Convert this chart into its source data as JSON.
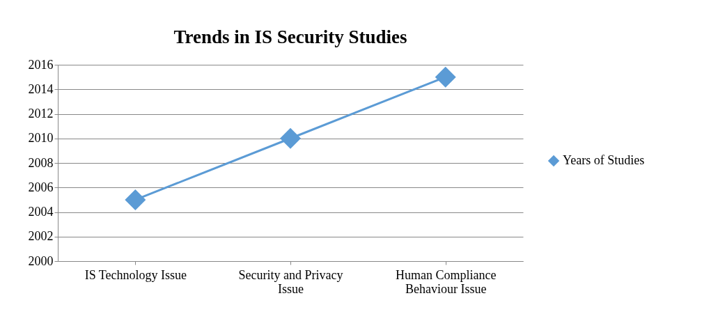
{
  "chart_data": {
    "type": "line",
    "title": "Trends in IS Security Studies",
    "categories": [
      "IS Technology Issue",
      "Security and Privacy Issue",
      "Human Compliance Behaviour Issue"
    ],
    "series": [
      {
        "name": "Years of Studies",
        "color": "#5b9bd5",
        "values": [
          2005,
          2010,
          2015
        ]
      }
    ],
    "ylim": [
      2000,
      2016
    ],
    "yticks": [
      2000,
      2002,
      2004,
      2006,
      2008,
      2010,
      2012,
      2014,
      2016
    ],
    "grid": "y",
    "legend": "right",
    "marker": "diamond",
    "line_style": "solid"
  }
}
